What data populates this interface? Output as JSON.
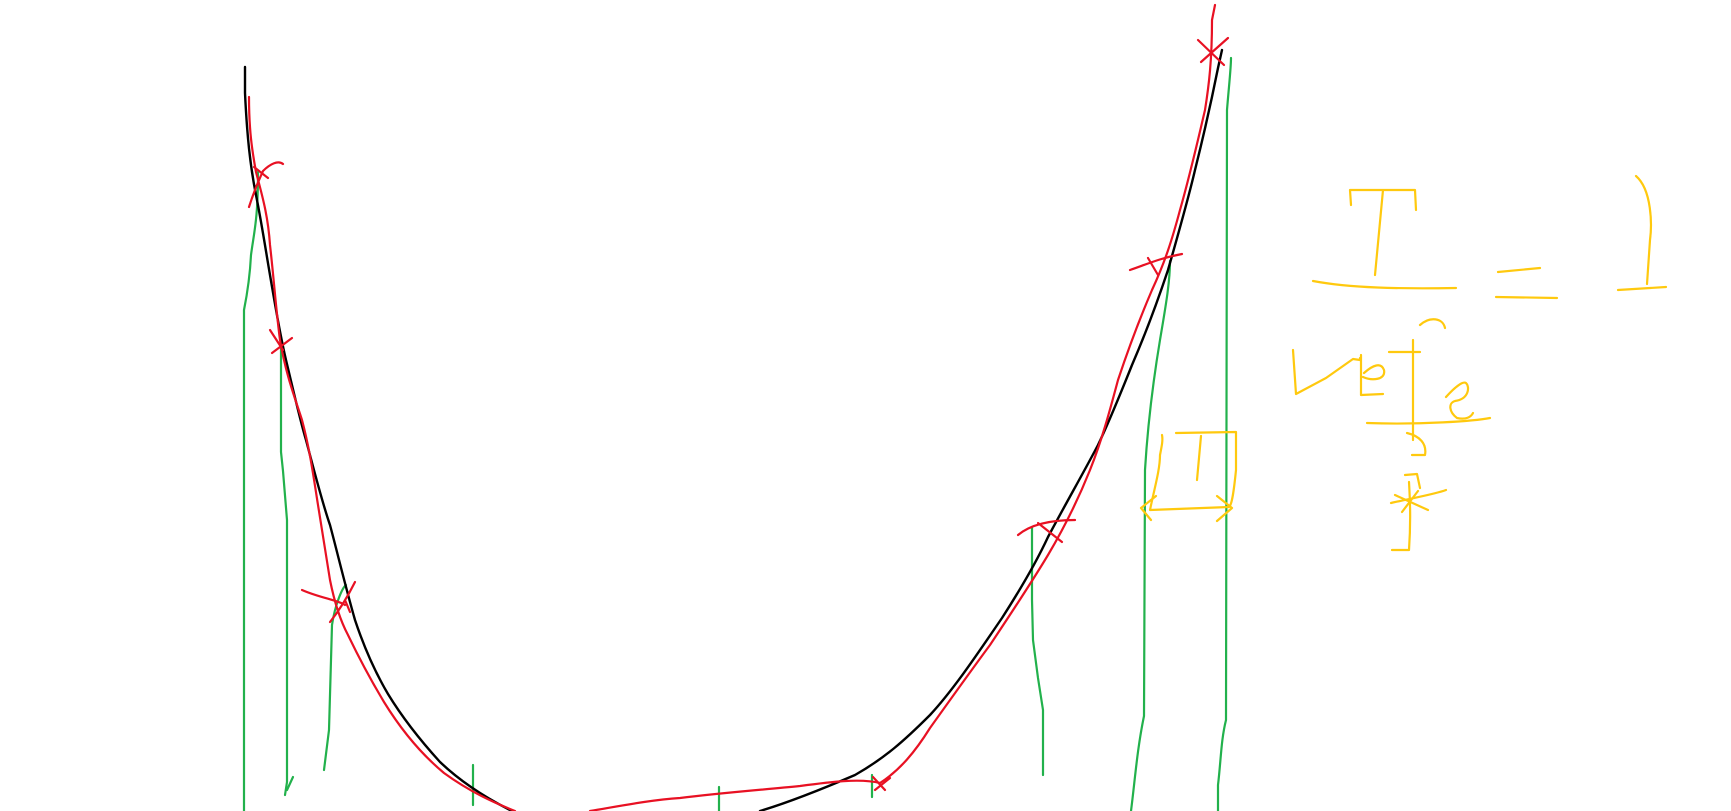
{
  "drawing": {
    "type": "freehand-sketch",
    "background": "#ffffff",
    "colors": {
      "black_curve": "#000000",
      "red_curve": "#e81123",
      "green_lines": "#22b14c",
      "yellow_annotation": "#ffc90e"
    },
    "elements": [
      "black-curve",
      "red-approximation-curve",
      "red-cross-markers",
      "green-vertical-lines",
      "yellow-handwritten-formula"
    ]
  }
}
